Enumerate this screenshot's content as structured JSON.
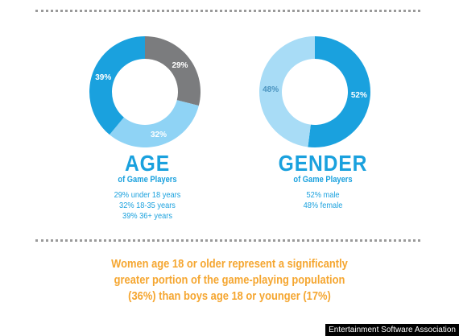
{
  "chart_data": [
    {
      "type": "pie",
      "categories": [
        "under 18 years",
        "18-35 years",
        "36+ years"
      ],
      "values": [
        29,
        32,
        39
      ],
      "slice_labels": [
        "29%",
        "32%",
        "39%"
      ],
      "colors": [
        "#7b7c7e",
        "#8fd3f5",
        "#1aa1de"
      ],
      "title": "AGE",
      "subtitle": "of Game Players",
      "stats": [
        "29% under 18 years",
        "32% 18-35 years",
        "39% 36+ years"
      ]
    },
    {
      "type": "pie",
      "categories": [
        "male",
        "female"
      ],
      "values": [
        52,
        48
      ],
      "slice_labels": [
        "52%",
        "48%"
      ],
      "colors": [
        "#1aa1de",
        "#a8dcf6"
      ],
      "title": "GENDER",
      "subtitle": "of Game Players",
      "stats": [
        "52% male",
        "48% female"
      ]
    }
  ],
  "callout": {
    "lines": [
      "Women age 18 or older represent a significantly",
      "greater portion of the game-playing population",
      "(36%) than boys age 18 or younger (17%)"
    ],
    "color": "#f5a630"
  },
  "source": "Entertainment Software Association",
  "accent_color": "#1aa1de"
}
